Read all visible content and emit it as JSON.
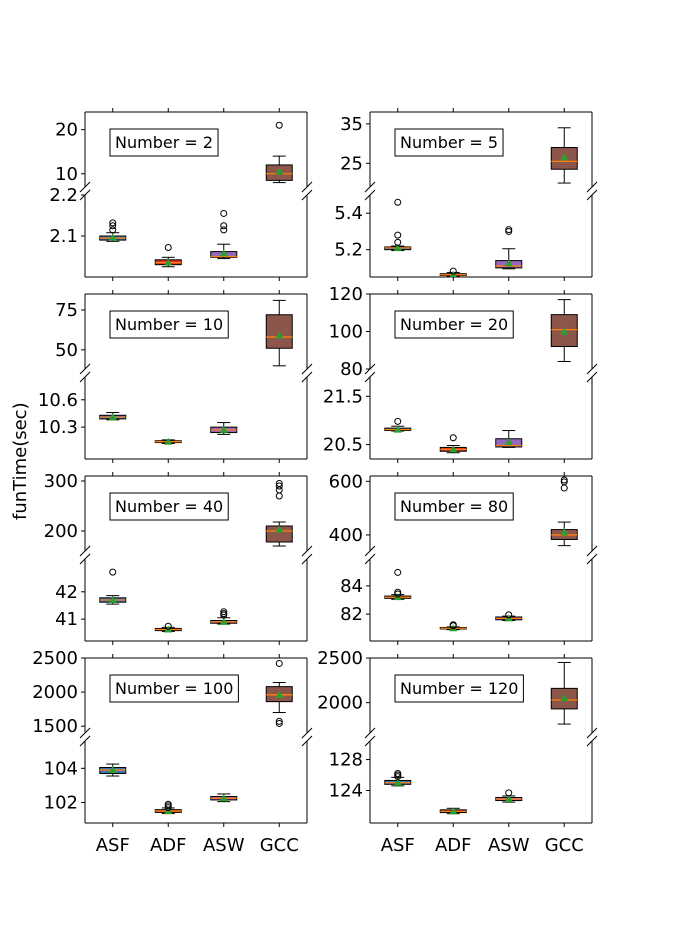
{
  "figure": {
    "ylabel": "funTime(sec)",
    "categories": [
      "ASF",
      "ADF",
      "ASW",
      "GCC"
    ],
    "colors": {
      "ASF": "#3a78b2",
      "ADF": "#d9302b",
      "ASW": "#9467bd",
      "GCC": "#8c564b",
      "median": "#ff7f0e",
      "mean": "#2ca02c"
    }
  },
  "chart_data": [
    {
      "type": "box",
      "legend": "Number = 2",
      "categories": [
        "ASF",
        "ADF",
        "ASW",
        "GCC"
      ],
      "top": {
        "ylim": [
          7,
          24
        ],
        "ticks": [
          10,
          20
        ]
      },
      "bottom": {
        "ylim": [
          2.0,
          2.2
        ],
        "ticks": [
          2.1,
          2.2
        ]
      },
      "boxes": [
        {
          "cat": "ASF",
          "whislo": 2.087,
          "q1": 2.09,
          "med": 2.095,
          "q3": 2.1,
          "whishi": 2.108,
          "mean": 2.096,
          "fliers": [
            2.115,
            2.125,
            2.132
          ]
        },
        {
          "cat": "ADF",
          "whislo": 2.025,
          "q1": 2.03,
          "med": 2.035,
          "q3": 2.042,
          "whishi": 2.048,
          "mean": 2.035,
          "fliers": [
            2.072
          ]
        },
        {
          "cat": "ASW",
          "whislo": 2.045,
          "q1": 2.048,
          "med": 2.05,
          "q3": 2.062,
          "whishi": 2.08,
          "mean": 2.058,
          "fliers": [
            2.115,
            2.125,
            2.155
          ]
        },
        {
          "cat": "GCC",
          "whislo": 8.0,
          "q1": 8.5,
          "med": 10.0,
          "q3": 12.0,
          "whishi": 14.0,
          "mean": 10.5,
          "fliers": [
            21
          ]
        }
      ]
    },
    {
      "type": "box",
      "legend": "Number = 5",
      "categories": [
        "ASF",
        "ADF",
        "ASW",
        "GCC"
      ],
      "top": {
        "ylim": [
          19,
          38
        ],
        "ticks": [
          25,
          35
        ]
      },
      "bottom": {
        "ylim": [
          5.05,
          5.5
        ],
        "ticks": [
          5.2,
          5.4
        ]
      },
      "boxes": [
        {
          "cat": "ASF",
          "whislo": 5.195,
          "q1": 5.2,
          "med": 5.21,
          "q3": 5.215,
          "whishi": 5.22,
          "mean": 5.21,
          "fliers": [
            5.24,
            5.28,
            5.46
          ]
        },
        {
          "cat": "ADF",
          "whislo": 5.055,
          "q1": 5.058,
          "med": 5.062,
          "q3": 5.068,
          "whishi": 5.075,
          "mean": 5.062,
          "fliers": [
            5.082
          ]
        },
        {
          "cat": "ASW",
          "whislo": 5.095,
          "q1": 5.1,
          "med": 5.11,
          "q3": 5.14,
          "whishi": 5.205,
          "mean": 5.125,
          "fliers": [
            5.3,
            5.31
          ]
        },
        {
          "cat": "GCC",
          "whislo": 20.0,
          "q1": 23.5,
          "med": 25.5,
          "q3": 29.0,
          "whishi": 34.0,
          "mean": 26.5,
          "fliers": []
        }
      ]
    },
    {
      "type": "box",
      "legend": "Number = 10",
      "categories": [
        "ASF",
        "ADF",
        "ASW",
        "GCC"
      ],
      "top": {
        "ylim": [
          38,
          85
        ],
        "ticks": [
          50,
          75
        ]
      },
      "bottom": {
        "ylim": [
          9.95,
          10.85
        ],
        "ticks": [
          10.3,
          10.6
        ]
      },
      "boxes": [
        {
          "cat": "ASF",
          "whislo": 10.38,
          "q1": 10.39,
          "med": 10.41,
          "q3": 10.43,
          "whishi": 10.46,
          "mean": 10.41,
          "fliers": []
        },
        {
          "cat": "ADF",
          "whislo": 10.12,
          "q1": 10.13,
          "med": 10.14,
          "q3": 10.15,
          "whishi": 10.16,
          "mean": 10.14,
          "fliers": []
        },
        {
          "cat": "ASW",
          "whislo": 10.22,
          "q1": 10.24,
          "med": 10.27,
          "q3": 10.3,
          "whishi": 10.35,
          "mean": 10.27,
          "fliers": []
        },
        {
          "cat": "GCC",
          "whislo": 40.0,
          "q1": 51.0,
          "med": 58.0,
          "q3": 72.0,
          "whishi": 81.0,
          "mean": 59.0,
          "fliers": []
        }
      ]
    },
    {
      "type": "box",
      "legend": "Number = 20",
      "categories": [
        "ASF",
        "ADF",
        "ASW",
        "GCC"
      ],
      "top": {
        "ylim": [
          80,
          120
        ],
        "ticks": [
          80,
          100,
          120
        ]
      },
      "bottom": {
        "ylim": [
          20.2,
          21.9
        ],
        "ticks": [
          20.5,
          21.5
        ]
      },
      "boxes": [
        {
          "cat": "ASF",
          "whislo": 20.78,
          "q1": 20.79,
          "med": 20.81,
          "q3": 20.84,
          "whishi": 20.88,
          "mean": 20.81,
          "fliers": [
            20.98
          ]
        },
        {
          "cat": "ADF",
          "whislo": 20.33,
          "q1": 20.36,
          "med": 20.4,
          "q3": 20.44,
          "whishi": 20.48,
          "mean": 20.4,
          "fliers": [
            20.64
          ]
        },
        {
          "cat": "ASW",
          "whislo": 20.44,
          "q1": 20.45,
          "med": 20.48,
          "q3": 20.62,
          "whishi": 20.79,
          "mean": 20.55,
          "fliers": []
        },
        {
          "cat": "GCC",
          "whislo": 84.0,
          "q1": 92.0,
          "med": 101.0,
          "q3": 109.0,
          "whishi": 117.0,
          "mean": 100.0,
          "fliers": []
        }
      ]
    },
    {
      "type": "box",
      "legend": "Number = 40",
      "categories": [
        "ASF",
        "ADF",
        "ASW",
        "GCC"
      ],
      "top": {
        "ylim": [
          160,
          310
        ],
        "ticks": [
          200,
          300
        ]
      },
      "bottom": {
        "ylim": [
          40.2,
          43.2
        ],
        "ticks": [
          41,
          42
        ]
      },
      "boxes": [
        {
          "cat": "ASF",
          "whislo": 41.55,
          "q1": 41.62,
          "med": 41.7,
          "q3": 41.78,
          "whishi": 41.86,
          "mean": 41.7,
          "fliers": [
            42.72
          ]
        },
        {
          "cat": "ADF",
          "whislo": 40.55,
          "q1": 40.58,
          "med": 40.62,
          "q3": 40.66,
          "whishi": 40.7,
          "mean": 40.62,
          "fliers": [
            40.74
          ]
        },
        {
          "cat": "ASW",
          "whislo": 40.82,
          "q1": 40.85,
          "med": 40.9,
          "q3": 40.95,
          "whishi": 41.05,
          "mean": 40.9,
          "fliers": [
            41.15,
            41.2,
            41.27
          ]
        },
        {
          "cat": "GCC",
          "whislo": 170.0,
          "q1": 178.0,
          "med": 200.0,
          "q3": 210.0,
          "whishi": 218.0,
          "mean": 203.0,
          "fliers": [
            270,
            282,
            290,
            295
          ]
        }
      ]
    },
    {
      "type": "box",
      "legend": "Number = 80",
      "categories": [
        "ASF",
        "ADF",
        "ASW",
        "GCC"
      ],
      "top": {
        "ylim": [
          340,
          620
        ],
        "ticks": [
          400,
          600
        ]
      },
      "bottom": {
        "ylim": [
          80.1,
          85.9
        ],
        "ticks": [
          82,
          84
        ]
      },
      "boxes": [
        {
          "cat": "ASF",
          "whislo": 83.05,
          "q1": 83.12,
          "med": 83.2,
          "q3": 83.28,
          "whishi": 83.38,
          "mean": 83.2,
          "fliers": [
            83.42,
            83.55,
            84.95
          ]
        },
        {
          "cat": "ADF",
          "whislo": 80.9,
          "q1": 80.95,
          "med": 81.0,
          "q3": 81.05,
          "whishi": 81.1,
          "mean": 81.0,
          "fliers": [
            81.18,
            81.25
          ]
        },
        {
          "cat": "ASW",
          "whislo": 81.55,
          "q1": 81.6,
          "med": 81.7,
          "q3": 81.8,
          "whishi": 81.86,
          "mean": 81.7,
          "fliers": [
            81.95
          ]
        },
        {
          "cat": "GCC",
          "whislo": 360.0,
          "q1": 383.0,
          "med": 400.0,
          "q3": 420.0,
          "whishi": 448.0,
          "mean": 410.0,
          "fliers": [
            575,
            598,
            605
          ]
        }
      ]
    },
    {
      "type": "box",
      "legend": "Number = 100",
      "categories": [
        "ASF",
        "ADF",
        "ASW",
        "GCC"
      ],
      "top": {
        "ylim": [
          1400,
          2500
        ],
        "ticks": [
          1500,
          2000,
          2500
        ]
      },
      "bottom": {
        "ylim": [
          100.8,
          105.6
        ],
        "ticks": [
          102,
          104
        ]
      },
      "boxes": [
        {
          "cat": "ASF",
          "whislo": 103.55,
          "q1": 103.7,
          "med": 103.9,
          "q3": 104.05,
          "whishi": 104.25,
          "mean": 103.9,
          "fliers": []
        },
        {
          "cat": "ADF",
          "whislo": 101.35,
          "q1": 101.42,
          "med": 101.5,
          "q3": 101.58,
          "whishi": 101.68,
          "mean": 101.5,
          "fliers": [
            101.7,
            101.8,
            101.9
          ]
        },
        {
          "cat": "ASW",
          "whislo": 102.05,
          "q1": 102.15,
          "med": 102.25,
          "q3": 102.35,
          "whishi": 102.5,
          "mean": 102.25,
          "fliers": []
        },
        {
          "cat": "GCC",
          "whislo": 1700.0,
          "q1": 1860.0,
          "med": 1960.0,
          "q3": 2080.0,
          "whishi": 2140.0,
          "mean": 1960.0,
          "fliers": [
            1540,
            1570,
            2420
          ]
        }
      ]
    },
    {
      "type": "box",
      "legend": "Number = 120",
      "categories": [
        "ASF",
        "ADF",
        "ASW",
        "GCC"
      ],
      "top": {
        "ylim": [
          1660,
          2500
        ],
        "ticks": [
          2000,
          2500
        ]
      },
      "bottom": {
        "ylim": [
          119.8,
          130.4
        ],
        "ticks": [
          124,
          128
        ]
      },
      "boxes": [
        {
          "cat": "ASF",
          "whislo": 124.6,
          "q1": 124.8,
          "med": 125.0,
          "q3": 125.3,
          "whishi": 125.7,
          "mean": 125.0,
          "fliers": [
            125.8,
            126.0,
            126.2
          ]
        },
        {
          "cat": "ADF",
          "whislo": 121.0,
          "q1": 121.15,
          "med": 121.3,
          "q3": 121.5,
          "whishi": 121.7,
          "mean": 121.3,
          "fliers": []
        },
        {
          "cat": "ASW",
          "whislo": 122.5,
          "q1": 122.7,
          "med": 122.9,
          "q3": 123.1,
          "whishi": 123.3,
          "mean": 122.9,
          "fliers": [
            123.7
          ]
        },
        {
          "cat": "GCC",
          "whislo": 1760.0,
          "q1": 1930.0,
          "med": 2030.0,
          "q3": 2160.0,
          "whishi": 2450.0,
          "mean": 2050.0,
          "fliers": []
        }
      ]
    }
  ]
}
